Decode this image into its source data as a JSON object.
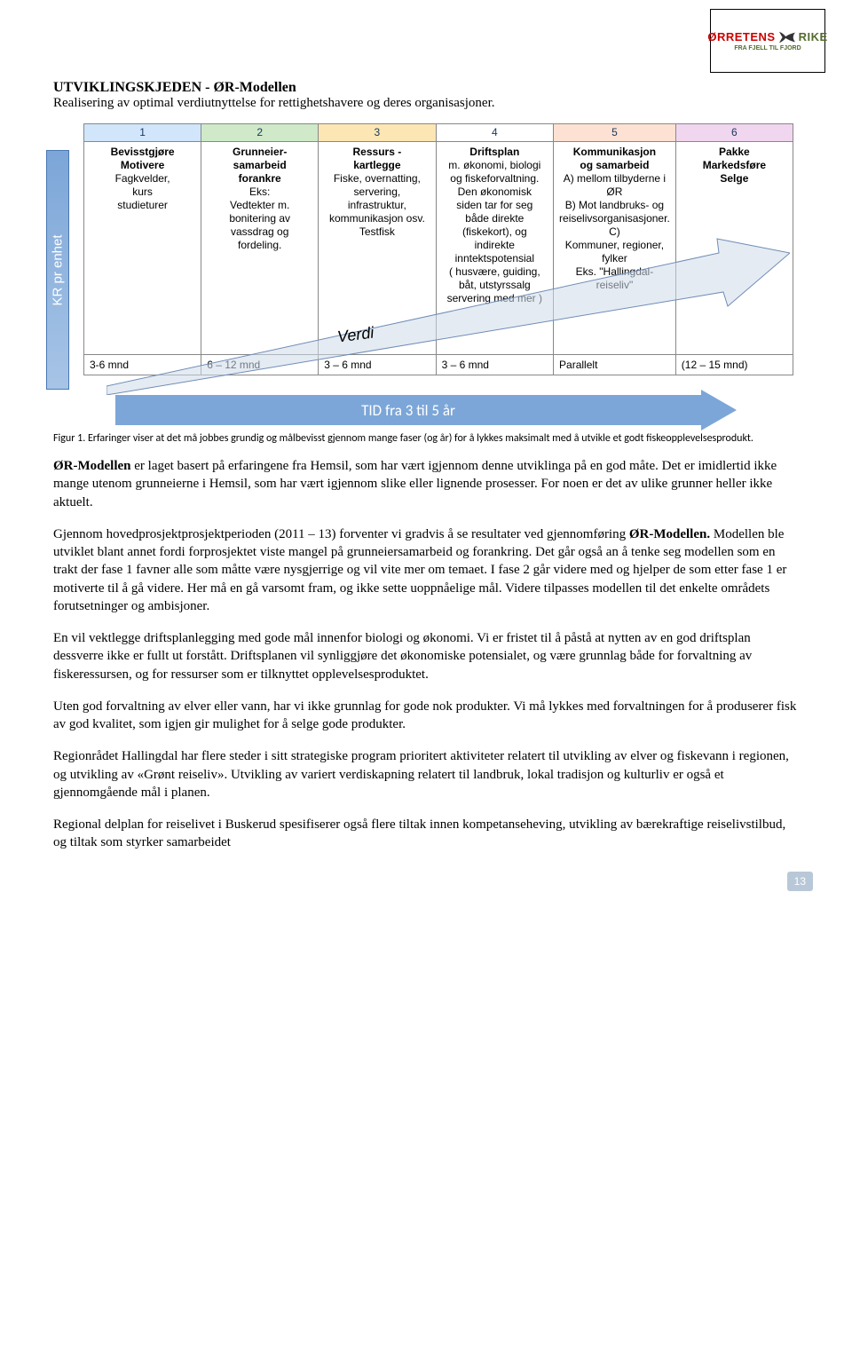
{
  "logo": {
    "text1": "ØRRETENS",
    "text2": "RIKE",
    "sub": "FRA FJELL TIL FJORD"
  },
  "title": "UTVIKLINGSKJEDEN - ØR-Modellen",
  "subtitle": "Realisering av optimal verdiutnyttelse for rettighetshavere og deres organisasjoner.",
  "yaxis_label": "KR pr enhet",
  "columns": [
    {
      "num": "1",
      "bg": "c1",
      "head": "Bevisstgjøre\nMotivere",
      "body": "Fagkvelder,\nkurs\nstudieturer",
      "foot": "3-6 mnd"
    },
    {
      "num": "2",
      "bg": "c2",
      "head": "Grunneier-\nsamarbeid\nforankre",
      "body": "Eks:\nVedtekter m.\nbonitering av\nvassdrag og\nfordeling.",
      "foot": "6 – 12 mnd"
    },
    {
      "num": "3",
      "bg": "c3",
      "head": "Ressurs -\nkartlegge",
      "body": "Fiske, overnatting,\nservering,\ninfrastruktur,\nkommunikasjon osv.\nTestfisk",
      "foot": "3 – 6 mnd"
    },
    {
      "num": "4",
      "bg": "c4",
      "head": "Driftsplan",
      "body": "m. økonomi, biologi\nog fiskeforvaltning.\nDen økonomisk\nsiden tar for seg\nbåde direkte\n(fiskekort), og\nindirekte\ninntektspotensial\n( husvære, guiding,\nbåt, utstyrssalg\nservering med mer )",
      "foot": "3 – 6 mnd"
    },
    {
      "num": "5",
      "bg": "c5",
      "head": "Kommunikasjon\nog samarbeid",
      "body": "A) mellom tilbyderne i ØR\nB) Mot landbruks- og\nreiselivsorganisasjoner. C)\nKommuner, regioner,\nfylker\nEks. \"Hallingdal-reiseliv\"",
      "foot": "Parallelt"
    },
    {
      "num": "6",
      "bg": "c6",
      "head": "Pakke\nMarkedsføre\nSelge",
      "body": "",
      "foot": "(12 – 15 mnd)"
    }
  ],
  "verdi_label": "Verdi",
  "time_label": "TID fra 3 til 5 år",
  "fig_caption": "Figur 1. Erfaringer viser at det må jobbes grundig og målbevisst gjennom mange faser (og år) for å lykkes maksimalt med å utvikle et godt fiskeopplevelsesprodukt.",
  "paragraphs": [
    {
      "html": "<b>ØR-Modellen</b> er laget basert på erfaringene fra Hemsil, som har vært igjennom denne utviklinga på en god måte. Det er imidlertid ikke mange utenom grunneierne i Hemsil, som har vært igjennom slike eller lignende prosesser. For noen er det av ulike grunner heller ikke aktuelt."
    },
    {
      "html": "Gjennom hovedprosjektprosjektperioden (2011 – 13) forventer vi gradvis å se resultater ved gjennomføring <b>ØR-Modellen.</b> Modellen ble utviklet blant annet fordi forprosjektet viste mangel på grunneiersamarbeid og forankring. Det går også an å tenke seg modellen som en trakt der fase 1 favner alle som måtte være nysgjerrige og vil vite mer om temaet. I fase 2 går videre med og hjelper de som etter fase 1 er motiverte til å gå videre. Her må en gå varsomt fram, og ikke sette uoppnåelige mål. Videre tilpasses modellen til det enkelte områdets forutsetninger og ambisjoner."
    },
    {
      "html": "En vil vektlegge driftsplanlegging med gode mål innenfor biologi og økonomi. Vi er fristet til å påstå at nytten av en god driftsplan dessverre ikke er fullt ut forstått. Driftsplanen vil synliggjøre det økonomiske potensialet, og være grunnlag både for forvaltning av fiskeressursen, og for ressurser som er tilknyttet opplevelsesproduktet."
    },
    {
      "html": "Uten god forvaltning av elver eller vann, har vi ikke grunnlag for gode nok produkter. Vi må lykkes med forvaltningen for å produserer fisk av god kvalitet,  som igjen gir mulighet for å selge gode produkter."
    },
    {
      "html": "Regionrådet Hallingdal har flere steder i sitt strategiske program prioritert aktiviteter relatert til utvikling av elver og fiskevann i regionen, og utvikling av «Grønt reiseliv». Utvikling av variert verdiskapning relatert til landbruk, lokal tradisjon og kulturliv er også et gjennomgående mål i planen."
    },
    {
      "html": "Regional delplan for reiselivet i Buskerud spesifiserer også flere tiltak innen kompetanseheving, utvikling av bærekraftige reiselivstilbud, og tiltak som styrker samarbeidet"
    }
  ],
  "page_number": "13",
  "arrow": {
    "fill": "#d0dbea",
    "stroke": "#6f8db5"
  }
}
